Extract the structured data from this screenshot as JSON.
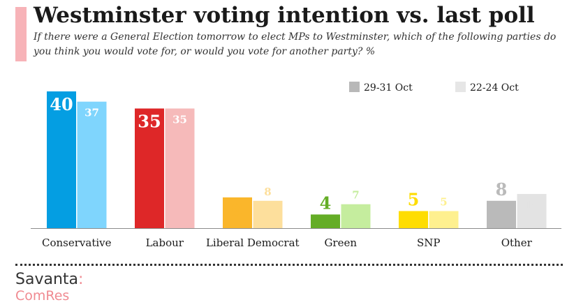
{
  "header": {
    "title": "Westminster voting intention vs. last poll",
    "subtitle": "If there were a General Election tomorrow to elect MPs to Westminster, which of the following parties do you think you would vote for, or would you vote for another party? %"
  },
  "logo": {
    "name": "Savanta",
    "colon": ":",
    "sub": "ComRes"
  },
  "chart_data": {
    "type": "bar",
    "title": "Westminster voting intention vs. last poll",
    "categories": [
      "Conservative",
      "Labour",
      "Liberal Democrat",
      "Green",
      "SNP",
      "Other"
    ],
    "series": [
      {
        "name": "29-31 Oct",
        "values": [
          40,
          35,
          9,
          4,
          5,
          8
        ],
        "colors": [
          "#049ee2",
          "#de2728",
          "#fab62b",
          "#64ad26",
          "#fedd02",
          "#bababa"
        ]
      },
      {
        "name": "22-24 Oct",
        "values": [
          37,
          35,
          8,
          7,
          5,
          10
        ],
        "colors": [
          "#7fd5fd",
          "#f6baba",
          "#fddf9c",
          "#c5ed9e",
          "#fef08f",
          "#e3e3e3"
        ]
      }
    ],
    "label_colors_latest": [
      "#ffffff",
      "#ffffff",
      "#fab62b",
      "#64ad26",
      "#fedd02",
      "#bababa"
    ],
    "label_colors_previous": [
      "#ffffff",
      "#ffffff",
      "#fddf9c",
      "#c5ed9e",
      "#fef08f",
      "#e3e3e3"
    ],
    "legend_colors": [
      "#b8b8b8",
      "#e6e6e6"
    ],
    "legend_position": "top-right",
    "ylim": [
      0,
      40
    ],
    "xlabel": "",
    "ylabel": "",
    "grid": false
  },
  "colors": {
    "accent": "#f7b3b8",
    "brand_pink": "#f08a91"
  }
}
